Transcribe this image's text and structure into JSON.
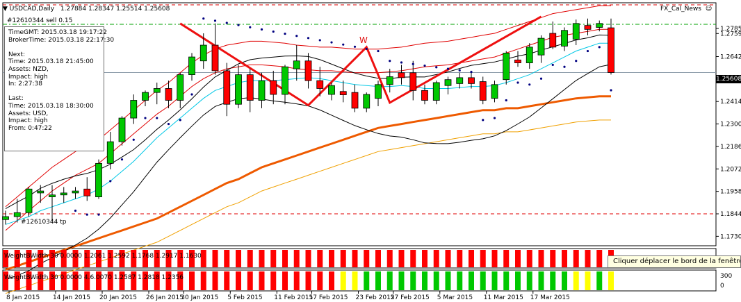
{
  "header": {
    "symbol": "USDCAD,Daily",
    "ohlc": "1.27884 1.28347 1.25514 1.25608",
    "order_label": "#12610344 sell 0.15",
    "indicator_name": "FX_Cal_News"
  },
  "info_box": {
    "lines": [
      "TimeGMT:  2015.03.18 19:17:22",
      "BrokerTime: 2015.03.18 22:17:30",
      "",
      "Next:",
      "Time: 2015.03.18 21:45:00",
      "Assets: NZD,",
      "Impact: high",
      "In:     2:27:38",
      "",
      "Last:",
      "Time: 2015.03.18 18:30:00",
      "Assets: USD,",
      "Impact: high",
      "From: 0:47:22"
    ]
  },
  "pattern_label": "W",
  "tp_label": "#12610344 tp",
  "current_price_label": "1.25608",
  "tooltip": "Cliquer  déplacer le bord de la fenêtre",
  "subwindow1_label": "WeightBWidth 30 0.0000 1.2061 1.2592 1.1768 1.2917 1.1630",
  "subwindow2_label": "WeightBWidth 30 0.0000 4.6.0070 1.2587 1.2818 1.2356",
  "subwindow2_axis": [
    "300",
    "0"
  ],
  "colors": {
    "bull": "#00c800",
    "bear": "#ff0000",
    "upper_band": "#e00000",
    "ma_fast": "#00c8e6",
    "ma_slow_orange": "#ee5a00",
    "ma_long": "#f0a000",
    "w_pattern": "#ee1010",
    "bar_yellow": "#ffff00"
  },
  "chart_data": {
    "type": "candlestick",
    "symbol": "USDCAD",
    "timeframe": "Daily",
    "y_ticks": [
      "1.27850",
      "1.27590",
      "1.26420",
      "1.25280",
      "1.24140",
      "1.23000",
      "1.21860",
      "1.20720",
      "1.19580",
      "1.18440",
      "1.17300"
    ],
    "y_tick_values": [
      1.2785,
      1.2759,
      1.2642,
      1.2528,
      1.2414,
      1.23,
      1.2186,
      1.2072,
      1.1958,
      1.1844,
      1.173
    ],
    "x_ticks": [
      "8 Jan 2015",
      "14 Jan 2015",
      "20 Jan 2015",
      "26 Jan 2015",
      "30 Jan 2015",
      "5 Feb 2015",
      "11 Feb 2015",
      "17 Feb 2015",
      "23 Feb 2015",
      "27 Feb 2015",
      "5 Mar 2015",
      "11 Mar 2015",
      "17 Mar 2015"
    ],
    "current_price": 1.25608,
    "tp_level": 1.1844,
    "candles": [
      {
        "o": 1.1815,
        "h": 1.186,
        "l": 1.179,
        "c": 1.183
      },
      {
        "o": 1.183,
        "h": 1.192,
        "l": 1.18,
        "c": 1.185
      },
      {
        "o": 1.185,
        "h": 1.198,
        "l": 1.183,
        "c": 1.197
      },
      {
        "o": 1.195,
        "h": 1.199,
        "l": 1.19,
        "c": 1.196
      },
      {
        "o": 1.193,
        "h": 1.199,
        "l": 1.181,
        "c": 1.194
      },
      {
        "o": 1.194,
        "h": 1.198,
        "l": 1.19,
        "c": 1.195
      },
      {
        "o": 1.195,
        "h": 1.198,
        "l": 1.192,
        "c": 1.196
      },
      {
        "o": 1.197,
        "h": 1.203,
        "l": 1.191,
        "c": 1.1935
      },
      {
        "o": 1.193,
        "h": 1.212,
        "l": 1.192,
        "c": 1.21
      },
      {
        "o": 1.21,
        "h": 1.226,
        "l": 1.207,
        "c": 1.221
      },
      {
        "o": 1.221,
        "h": 1.234,
        "l": 1.219,
        "c": 1.233
      },
      {
        "o": 1.233,
        "h": 1.245,
        "l": 1.23,
        "c": 1.242
      },
      {
        "o": 1.242,
        "h": 1.247,
        "l": 1.239,
        "c": 1.246
      },
      {
        "o": 1.246,
        "h": 1.251,
        "l": 1.24,
        "c": 1.248
      },
      {
        "o": 1.248,
        "h": 1.252,
        "l": 1.238,
        "c": 1.242
      },
      {
        "o": 1.242,
        "h": 1.256,
        "l": 1.238,
        "c": 1.255
      },
      {
        "o": 1.255,
        "h": 1.266,
        "l": 1.252,
        "c": 1.264
      },
      {
        "o": 1.262,
        "h": 1.276,
        "l": 1.258,
        "c": 1.27
      },
      {
        "o": 1.27,
        "h": 1.281,
        "l": 1.255,
        "c": 1.257
      },
      {
        "o": 1.257,
        "h": 1.261,
        "l": 1.234,
        "c": 1.24
      },
      {
        "o": 1.24,
        "h": 1.26,
        "l": 1.238,
        "c": 1.255
      },
      {
        "o": 1.255,
        "h": 1.258,
        "l": 1.236,
        "c": 1.242
      },
      {
        "o": 1.242,
        "h": 1.256,
        "l": 1.238,
        "c": 1.252
      },
      {
        "o": 1.252,
        "h": 1.257,
        "l": 1.24,
        "c": 1.245
      },
      {
        "o": 1.245,
        "h": 1.26,
        "l": 1.24,
        "c": 1.259
      },
      {
        "o": 1.258,
        "h": 1.27,
        "l": 1.252,
        "c": 1.262
      },
      {
        "o": 1.262,
        "h": 1.266,
        "l": 1.248,
        "c": 1.252
      },
      {
        "o": 1.252,
        "h": 1.259,
        "l": 1.244,
        "c": 1.248
      },
      {
        "o": 1.245,
        "h": 1.251,
        "l": 1.242,
        "c": 1.2495
      },
      {
        "o": 1.2465,
        "h": 1.252,
        "l": 1.241,
        "c": 1.2448
      },
      {
        "o": 1.246,
        "h": 1.25,
        "l": 1.236,
        "c": 1.238
      },
      {
        "o": 1.238,
        "h": 1.246,
        "l": 1.236,
        "c": 1.245
      },
      {
        "o": 1.243,
        "h": 1.252,
        "l": 1.239,
        "c": 1.25
      },
      {
        "o": 1.25,
        "h": 1.258,
        "l": 1.246,
        "c": 1.254
      },
      {
        "o": 1.256,
        "h": 1.26,
        "l": 1.25,
        "c": 1.2535
      },
      {
        "o": 1.256,
        "h": 1.262,
        "l": 1.242,
        "c": 1.247
      },
      {
        "o": 1.247,
        "h": 1.25,
        "l": 1.24,
        "c": 1.242
      },
      {
        "o": 1.242,
        "h": 1.252,
        "l": 1.24,
        "c": 1.251
      },
      {
        "o": 1.2495,
        "h": 1.254,
        "l": 1.245,
        "c": 1.2525
      },
      {
        "o": 1.2505,
        "h": 1.256,
        "l": 1.248,
        "c": 1.2535
      },
      {
        "o": 1.2535,
        "h": 1.257,
        "l": 1.248,
        "c": 1.2505
      },
      {
        "o": 1.2515,
        "h": 1.254,
        "l": 1.24,
        "c": 1.242
      },
      {
        "o": 1.243,
        "h": 1.252,
        "l": 1.241,
        "c": 1.25
      },
      {
        "o": 1.2525,
        "h": 1.267,
        "l": 1.25,
        "c": 1.266
      },
      {
        "o": 1.2625,
        "h": 1.267,
        "l": 1.259,
        "c": 1.261
      },
      {
        "o": 1.261,
        "h": 1.271,
        "l": 1.258,
        "c": 1.269
      },
      {
        "o": 1.265,
        "h": 1.275,
        "l": 1.261,
        "c": 1.2735
      },
      {
        "o": 1.276,
        "h": 1.282,
        "l": 1.268,
        "c": 1.269
      },
      {
        "o": 1.2695,
        "h": 1.279,
        "l": 1.267,
        "c": 1.2775
      },
      {
        "o": 1.273,
        "h": 1.283,
        "l": 1.27,
        "c": 1.281
      },
      {
        "o": 1.28,
        "h": 1.2835,
        "l": 1.275,
        "c": 1.278
      },
      {
        "o": 1.279,
        "h": 1.2825,
        "l": 1.277,
        "c": 1.281
      },
      {
        "o": 1.2788,
        "h": 1.2835,
        "l": 1.2551,
        "c": 1.2561
      }
    ],
    "series": [
      {
        "name": "MA fast",
        "values": [
          1.179,
          1.181,
          1.183,
          1.186,
          1.188,
          1.19,
          1.192,
          1.194,
          1.197,
          1.201,
          1.206,
          1.211,
          1.217,
          1.223,
          1.228,
          1.233,
          1.238,
          1.243,
          1.247,
          1.249,
          1.251,
          1.252,
          1.252,
          1.252,
          1.2525,
          1.253,
          1.2535,
          1.253,
          1.252,
          1.251,
          1.25,
          1.2495,
          1.249,
          1.249,
          1.2495,
          1.249,
          1.248,
          1.248,
          1.248,
          1.2485,
          1.249,
          1.249,
          1.2495,
          1.251,
          1.253,
          1.255,
          1.258,
          1.261,
          1.264,
          1.267,
          1.269,
          1.271,
          1.271
        ]
      },
      {
        "name": "Upper band",
        "values": [
          1.188,
          1.193,
          1.198,
          1.203,
          1.208,
          1.212,
          1.216,
          1.219,
          1.222,
          1.227,
          1.232,
          1.237,
          1.242,
          1.247,
          1.251,
          1.256,
          1.261,
          1.265,
          1.268,
          1.27,
          1.271,
          1.272,
          1.272,
          1.2715,
          1.271,
          1.27,
          1.2695,
          1.269,
          1.269,
          1.2685,
          1.268,
          1.268,
          1.268,
          1.2685,
          1.269,
          1.27,
          1.271,
          1.2715,
          1.272,
          1.273,
          1.274,
          1.275,
          1.276,
          1.278,
          1.28,
          1.282,
          1.284,
          1.286,
          1.287,
          1.288,
          1.289,
          1.29,
          1.29
        ]
      },
      {
        "name": "Orange MA",
        "values": [
          1.156,
          1.158,
          1.16,
          1.162,
          1.164,
          1.166,
          1.168,
          1.17,
          1.172,
          1.174,
          1.176,
          1.178,
          1.18,
          1.182,
          1.185,
          1.188,
          1.191,
          1.194,
          1.197,
          1.2,
          1.202,
          1.205,
          1.208,
          1.21,
          1.212,
          1.214,
          1.216,
          1.218,
          1.22,
          1.222,
          1.224,
          1.226,
          1.228,
          1.229,
          1.23,
          1.231,
          1.232,
          1.233,
          1.234,
          1.235,
          1.236,
          1.237,
          1.237,
          1.238,
          1.238,
          1.239,
          1.24,
          1.241,
          1.242,
          1.243,
          1.2435,
          1.244,
          1.244
        ]
      }
    ],
    "subwindow1_bars": [
      "red",
      "red",
      "red",
      "red",
      "red",
      "red",
      "red",
      "red",
      "red",
      "red",
      "red",
      "red",
      "red",
      "red",
      "red",
      "red",
      "red",
      "red",
      "red",
      "red",
      "red",
      "red",
      "red",
      "red",
      "red",
      "red",
      "red",
      "red",
      "red",
      "red",
      "red",
      "red",
      "red",
      "red",
      "red",
      "red",
      "red",
      "red",
      "red",
      "red",
      "red",
      "red",
      "red",
      "red",
      "red",
      "red",
      "red",
      "red",
      "red",
      "red",
      "red",
      "red",
      "red"
    ],
    "subwindow2_bars": [
      "red",
      "red",
      "red",
      "red",
      "red",
      "red",
      "red",
      "red",
      "red",
      "red",
      "red",
      "red",
      "red",
      "red",
      "red",
      "red",
      "red",
      "red",
      "red",
      "red",
      "red",
      "red",
      "red",
      "red",
      "red",
      "red",
      "red",
      "red",
      "red",
      "yellow",
      "yellow",
      "green",
      "green",
      "green",
      "green",
      "green",
      "green",
      "green",
      "green",
      "green",
      "green",
      "green",
      "green",
      "green",
      "green",
      "green",
      "green",
      "green",
      "green",
      "yellow",
      "yellow",
      "green",
      "yellow"
    ]
  }
}
